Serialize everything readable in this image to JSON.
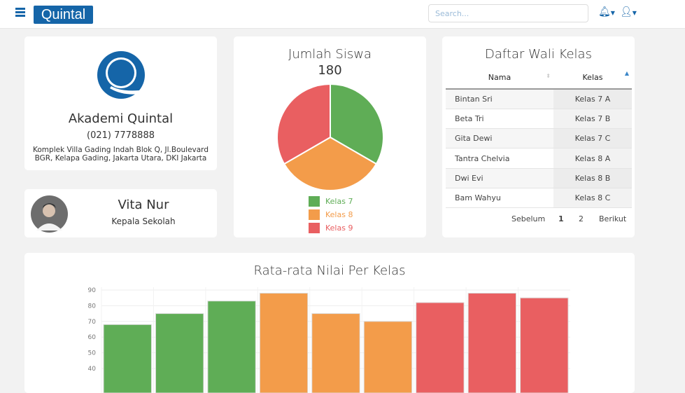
{
  "nav": {
    "brand": "Quintal",
    "search_placeholder": "Search...",
    "icons": [
      "menu-icon",
      "bell-icon",
      "user-icon"
    ],
    "accent": "#1565a8"
  },
  "school": {
    "name": "Akademi Quintal",
    "phone": "(021) 7778888",
    "address_line1": "Komplek Villa Gading Indah Blok Q, Jl.Boulevard",
    "address_line2": "BGR, Kelapa Gading, Jakarta Utara, DKI Jakarta"
  },
  "principal": {
    "name": "Vita Nur",
    "role": "Kepala Sekolah"
  },
  "chart_data": [
    {
      "type": "pie",
      "title": "Jumlah Siswa",
      "subtitle": "180",
      "categories": [
        "Kelas 7",
        "Kelas 8",
        "Kelas 9"
      ],
      "values": [
        60,
        60,
        60
      ],
      "colors": [
        "#5fad56",
        "#f39c4a",
        "#e95f61"
      ],
      "legend": "bottom"
    },
    {
      "type": "bar",
      "title": "Rata-rata Nilai Per Kelas",
      "values": [
        68,
        75,
        83,
        88,
        75,
        70,
        82,
        88,
        85
      ],
      "colors": [
        "#5fad56",
        "#5fad56",
        "#5fad56",
        "#f39c4a",
        "#f39c4a",
        "#f39c4a",
        "#e95f61",
        "#e95f61",
        "#e95f61"
      ],
      "yticks": [
        "90",
        "80",
        "70",
        "60",
        "50",
        "40"
      ],
      "ylim_visible": [
        35,
        90
      ],
      "grid": true
    }
  ],
  "walikelas": {
    "title": "Daftar Wali Kelas",
    "columns": [
      "Nama",
      "Kelas"
    ],
    "rows": [
      [
        "Bintan Sri",
        "Kelas 7 A"
      ],
      [
        "Beta Tri",
        "Kelas 7 B"
      ],
      [
        "Gita Dewi",
        "Kelas 7 C"
      ],
      [
        "Tantra Chelvia",
        "Kelas 8 A"
      ],
      [
        "Dwi Evi",
        "Kelas 8 B"
      ],
      [
        "Bam Wahyu",
        "Kelas 8 C"
      ]
    ],
    "pagination": {
      "prev": "Sebelum",
      "pages": [
        "1",
        "2"
      ],
      "next": "Berikut",
      "current": "1"
    }
  }
}
